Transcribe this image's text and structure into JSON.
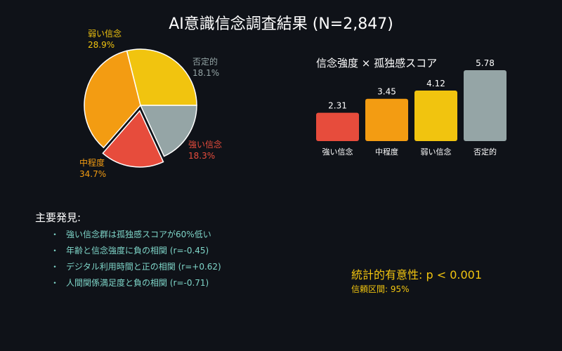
{
  "title": "AI意識信念調査結果 (N=2,847)",
  "chart_data": [
    {
      "type": "pie",
      "slices": [
        {
          "label": "否定的",
          "value": 18.1,
          "percent_text": "18.1%",
          "color": "#95a5a6"
        },
        {
          "label": "強い信念",
          "value": 18.3,
          "percent_text": "18.3%",
          "color": "#e74c3c"
        },
        {
          "label": "中程度",
          "value": 34.7,
          "percent_text": "34.7%",
          "color": "#f39c12"
        },
        {
          "label": "弱い信念",
          "value": 28.9,
          "percent_text": "28.9%",
          "color": "#f1c40f"
        }
      ],
      "exploded": "強い信念"
    },
    {
      "type": "bar",
      "title": "信念強度 × 孤独感スコア",
      "categories": [
        "強い信念",
        "中程度",
        "弱い信念",
        "否定的"
      ],
      "values": [
        2.31,
        3.45,
        4.12,
        5.78
      ],
      "value_labels": [
        "2.31",
        "3.45",
        "4.12",
        "5.78"
      ],
      "colors": [
        "#e74c3c",
        "#f39c12",
        "#f1c40f",
        "#95a5a6"
      ],
      "ylim": [
        0,
        5.78
      ]
    }
  ],
  "findings": {
    "title": "主要発見:",
    "bullet": "・",
    "items": [
      "強い信念群は孤独感スコアが60%低い",
      "年齢と信念強度に負の相関 (r=-0.45)",
      "デジタル利用時間と正の相関 (r=+0.62)",
      "人間関係満足度と負の相関 (r=-0.71)"
    ]
  },
  "significance": {
    "main": "統計的有意性: p < 0.001",
    "ci": "信頼区間: 95%"
  }
}
